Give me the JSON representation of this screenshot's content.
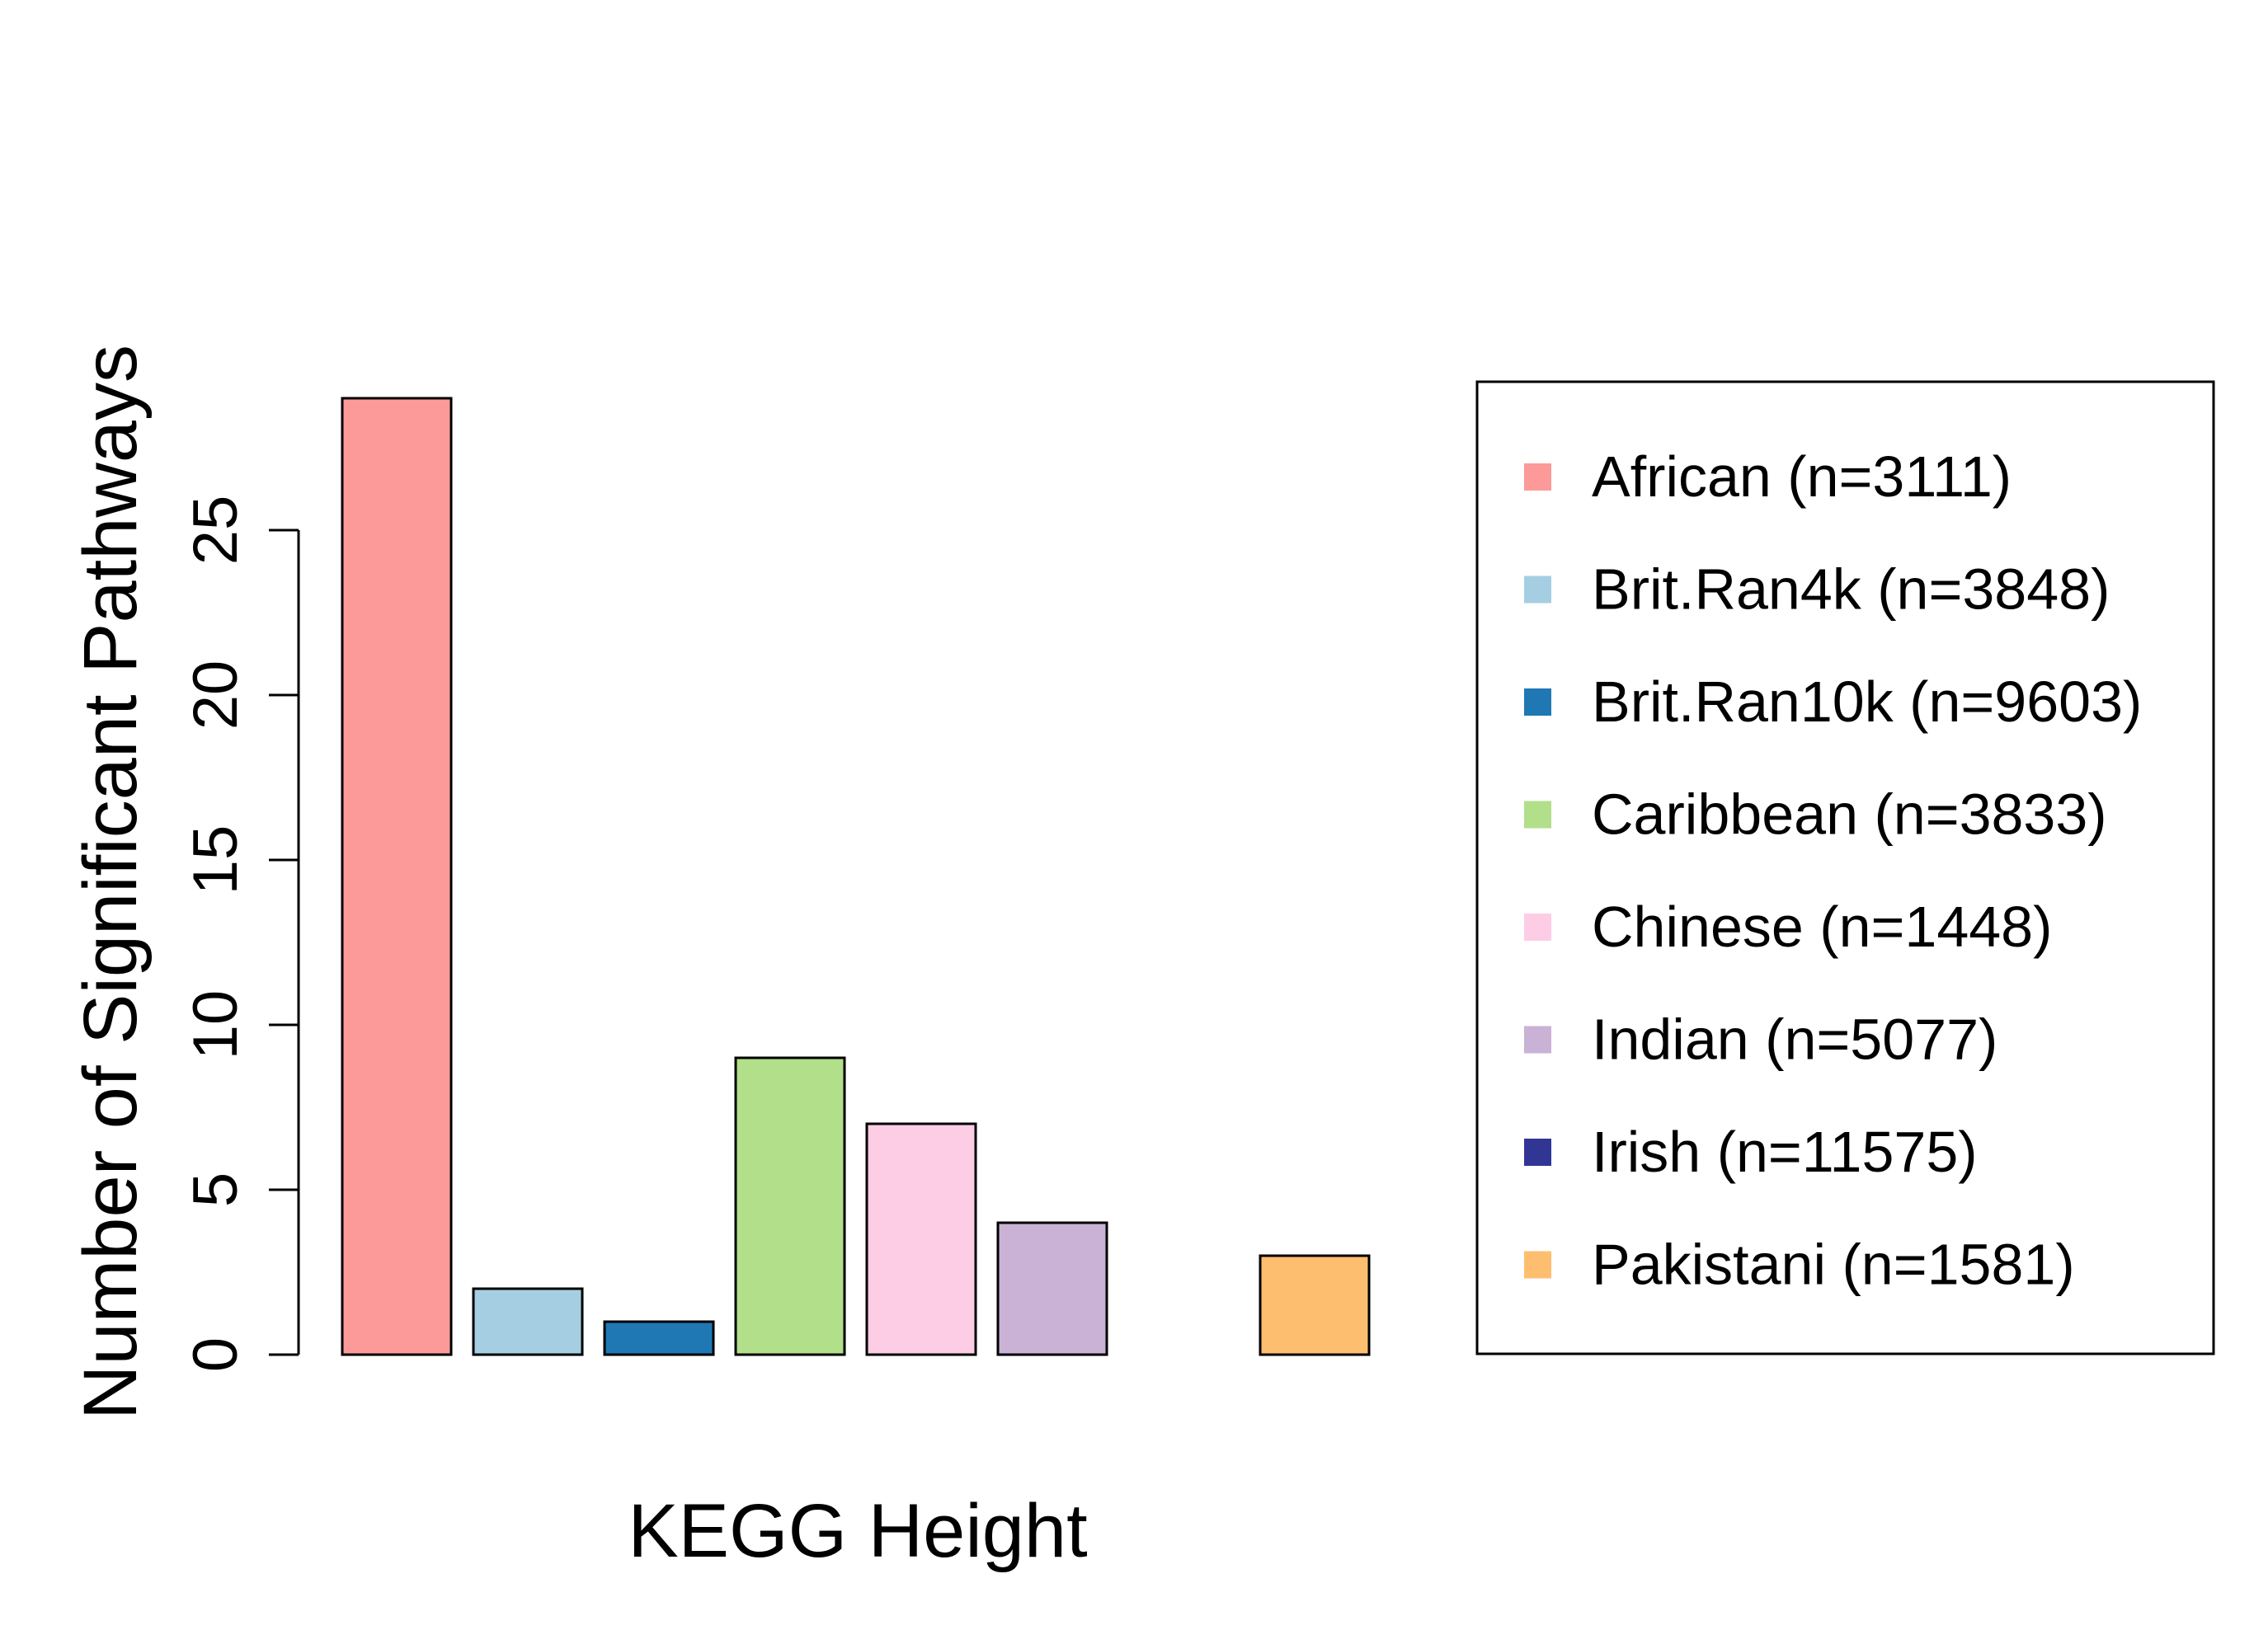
{
  "chart_data": {
    "type": "bar",
    "title": "",
    "xlabel": "KEGG Height",
    "ylabel": "Number of Significant Pathways",
    "ylim": [
      0,
      29
    ],
    "yticks": [
      0,
      5,
      10,
      15,
      20,
      25
    ],
    "grid": false,
    "legend_position": "right",
    "categories": [
      "African (n=3111)",
      "Brit.Ran4k (n=3848)",
      "Brit.Ran10k (n=9603)",
      "Caribbean (n=3833)",
      "Chinese (n=1448)",
      "Indian (n=5077)",
      "Irish (n=11575)",
      "Pakistani (n=1581)"
    ],
    "values": [
      29,
      2,
      1,
      9,
      7,
      4,
      0,
      3
    ],
    "colors": [
      "#FB9A99",
      "#A6CEE3",
      "#1F78B4",
      "#B2DF8A",
      "#FCCDE5",
      "#CAB2D6",
      "#313695",
      "#FDBF6F"
    ]
  }
}
